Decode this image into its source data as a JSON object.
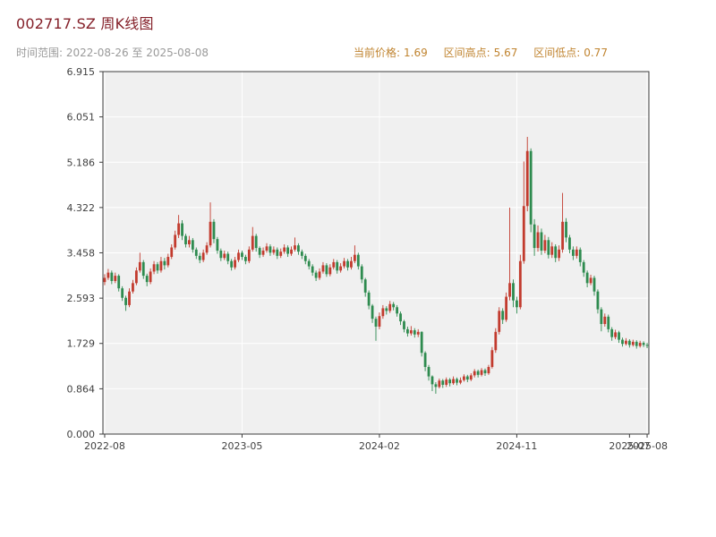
{
  "header": {
    "title": "002717.SZ 周K线图",
    "time_range": "时间范围: 2022-08-26 至 2025-08-08"
  },
  "stats": {
    "current_label": "当前价格:",
    "current_value": "1.69",
    "high_label": "区间高点:",
    "high_value": "5.67",
    "low_label": "区间低点:",
    "low_value": "0.77"
  },
  "colors": {
    "title": "#842029",
    "time_range": "#9a9a9a",
    "stats": "#c08430",
    "tick_label": "#3f3f3f",
    "plot_bg": "#f0f0f0",
    "gridline": "#ffffff",
    "frame": "#3c3c3c"
  },
  "chart_data": {
    "type": "candlestick",
    "title": "002717.SZ 周K线图",
    "symbol": "002717.SZ",
    "interval": "weekly",
    "start_date": "2022-08-26",
    "end_date": "2025-08-08",
    "current_price": 1.69,
    "range_high": 5.67,
    "range_low": 0.77,
    "ylim": [
      0,
      6.915
    ],
    "y_ticks": [
      "0.000",
      "0.864",
      "1.729",
      "2.593",
      "3.458",
      "4.322",
      "5.186",
      "6.051",
      "6.915"
    ],
    "x_ticks": [
      {
        "label": "2022-08",
        "index": 0,
        "grid": true
      },
      {
        "label": "2023-05",
        "index": 39,
        "grid": true
      },
      {
        "label": "2024-02",
        "index": 78,
        "grid": true
      },
      {
        "label": "2024-11",
        "index": 117,
        "grid": true
      },
      {
        "label": "2025-07",
        "index": 149,
        "grid": false
      },
      {
        "label": "2025-08",
        "index": 154,
        "grid": true
      }
    ],
    "up_color": "#c23b2e",
    "down_color": "#2e8b4f",
    "ohlc_format": [
      "open",
      "high",
      "low",
      "close"
    ],
    "candles": [
      [
        2.9,
        3.05,
        2.84,
        2.98
      ],
      [
        2.98,
        3.15,
        2.94,
        3.08
      ],
      [
        3.08,
        3.12,
        2.86,
        2.92
      ],
      [
        2.92,
        3.08,
        2.88,
        3.02
      ],
      [
        3.02,
        3.05,
        2.72,
        2.78
      ],
      [
        2.78,
        2.82,
        2.54,
        2.6
      ],
      [
        2.6,
        2.64,
        2.35,
        2.46
      ],
      [
        2.46,
        2.78,
        2.42,
        2.72
      ],
      [
        2.72,
        2.94,
        2.68,
        2.88
      ],
      [
        2.88,
        3.18,
        2.84,
        3.12
      ],
      [
        3.12,
        3.46,
        3.08,
        3.28
      ],
      [
        3.28,
        3.32,
        2.96,
        3.02
      ],
      [
        3.02,
        3.06,
        2.82,
        2.9
      ],
      [
        2.9,
        3.16,
        2.86,
        3.1
      ],
      [
        3.1,
        3.3,
        3.05,
        3.24
      ],
      [
        3.24,
        3.28,
        3.06,
        3.12
      ],
      [
        3.12,
        3.38,
        3.08,
        3.3
      ],
      [
        3.3,
        3.36,
        3.14,
        3.22
      ],
      [
        3.22,
        3.44,
        3.18,
        3.38
      ],
      [
        3.38,
        3.62,
        3.34,
        3.56
      ],
      [
        3.56,
        3.88,
        3.52,
        3.8
      ],
      [
        3.8,
        4.18,
        3.74,
        4.02
      ],
      [
        4.02,
        4.08,
        3.7,
        3.78
      ],
      [
        3.78,
        3.82,
        3.56,
        3.62
      ],
      [
        3.62,
        3.78,
        3.56,
        3.7
      ],
      [
        3.7,
        3.74,
        3.46,
        3.52
      ],
      [
        3.52,
        3.56,
        3.34,
        3.4
      ],
      [
        3.4,
        3.46,
        3.26,
        3.32
      ],
      [
        3.32,
        3.52,
        3.28,
        3.46
      ],
      [
        3.46,
        3.66,
        3.42,
        3.6
      ],
      [
        3.6,
        4.42,
        3.56,
        4.05
      ],
      [
        4.05,
        4.1,
        3.64,
        3.72
      ],
      [
        3.72,
        3.76,
        3.44,
        3.5
      ],
      [
        3.5,
        3.54,
        3.3,
        3.36
      ],
      [
        3.36,
        3.5,
        3.32,
        3.44
      ],
      [
        3.44,
        3.48,
        3.24,
        3.3
      ],
      [
        3.3,
        3.34,
        3.12,
        3.18
      ],
      [
        3.18,
        3.38,
        3.14,
        3.32
      ],
      [
        3.32,
        3.52,
        3.28,
        3.46
      ],
      [
        3.46,
        3.5,
        3.32,
        3.38
      ],
      [
        3.38,
        3.42,
        3.24,
        3.3
      ],
      [
        3.3,
        3.58,
        3.26,
        3.52
      ],
      [
        3.52,
        3.95,
        3.48,
        3.78
      ],
      [
        3.78,
        3.82,
        3.48,
        3.55
      ],
      [
        3.55,
        3.58,
        3.36,
        3.42
      ],
      [
        3.42,
        3.56,
        3.38,
        3.5
      ],
      [
        3.5,
        3.64,
        3.46,
        3.58
      ],
      [
        3.58,
        3.62,
        3.4,
        3.46
      ],
      [
        3.46,
        3.58,
        3.42,
        3.52
      ],
      [
        3.52,
        3.56,
        3.34,
        3.4
      ],
      [
        3.4,
        3.54,
        3.36,
        3.48
      ],
      [
        3.48,
        3.62,
        3.44,
        3.56
      ],
      [
        3.56,
        3.6,
        3.38,
        3.44
      ],
      [
        3.44,
        3.58,
        3.4,
        3.52
      ],
      [
        3.52,
        3.75,
        3.48,
        3.6
      ],
      [
        3.6,
        3.64,
        3.42,
        3.48
      ],
      [
        3.48,
        3.52,
        3.34,
        3.4
      ],
      [
        3.4,
        3.44,
        3.24,
        3.3
      ],
      [
        3.3,
        3.34,
        3.14,
        3.2
      ],
      [
        3.2,
        3.24,
        3.02,
        3.08
      ],
      [
        3.08,
        3.12,
        2.92,
        2.98
      ],
      [
        2.98,
        3.16,
        2.94,
        3.1
      ],
      [
        3.1,
        3.28,
        3.06,
        3.22
      ],
      [
        3.22,
        3.26,
        3.0,
        3.05
      ],
      [
        3.05,
        3.24,
        3.01,
        3.18
      ],
      [
        3.18,
        3.34,
        3.14,
        3.28
      ],
      [
        3.28,
        3.32,
        3.06,
        3.12
      ],
      [
        3.12,
        3.26,
        3.08,
        3.2
      ],
      [
        3.2,
        3.36,
        3.16,
        3.3
      ],
      [
        3.3,
        3.34,
        3.12,
        3.18
      ],
      [
        3.18,
        3.38,
        3.14,
        3.3
      ],
      [
        3.3,
        3.6,
        3.26,
        3.42
      ],
      [
        3.42,
        3.46,
        3.14,
        3.2
      ],
      [
        3.2,
        3.24,
        2.88,
        2.95
      ],
      [
        2.95,
        2.98,
        2.62,
        2.7
      ],
      [
        2.7,
        2.74,
        2.38,
        2.45
      ],
      [
        2.45,
        2.48,
        2.12,
        2.2
      ],
      [
        2.2,
        2.24,
        1.78,
        2.05
      ],
      [
        2.05,
        2.32,
        2.0,
        2.25
      ],
      [
        2.25,
        2.46,
        2.2,
        2.4
      ],
      [
        2.4,
        2.44,
        2.28,
        2.35
      ],
      [
        2.35,
        2.54,
        2.31,
        2.48
      ],
      [
        2.48,
        2.52,
        2.36,
        2.42
      ],
      [
        2.42,
        2.46,
        2.24,
        2.3
      ],
      [
        2.3,
        2.34,
        2.08,
        2.15
      ],
      [
        2.15,
        2.18,
        1.94,
        2.0
      ],
      [
        2.0,
        2.05,
        1.86,
        1.92
      ],
      [
        1.92,
        2.06,
        1.88,
        1.98
      ],
      [
        1.98,
        2.02,
        1.84,
        1.9
      ],
      [
        1.9,
        2.0,
        1.85,
        1.95
      ],
      [
        1.95,
        1.96,
        1.48,
        1.55
      ],
      [
        1.55,
        1.58,
        1.2,
        1.28
      ],
      [
        1.28,
        1.32,
        1.02,
        1.1
      ],
      [
        1.1,
        1.12,
        0.82,
        0.95
      ],
      [
        0.95,
        0.99,
        0.77,
        0.9
      ],
      [
        0.9,
        1.06,
        0.87,
        1.02
      ],
      [
        1.02,
        1.05,
        0.88,
        0.94
      ],
      [
        0.94,
        1.08,
        0.9,
        1.04
      ],
      [
        1.04,
        1.07,
        0.91,
        0.97
      ],
      [
        0.97,
        1.1,
        0.94,
        1.05
      ],
      [
        1.05,
        1.08,
        0.93,
        0.98
      ],
      [
        0.98,
        1.08,
        0.95,
        1.03
      ],
      [
        1.03,
        1.14,
        1.0,
        1.1
      ],
      [
        1.1,
        1.13,
        0.99,
        1.04
      ],
      [
        1.04,
        1.16,
        1.01,
        1.12
      ],
      [
        1.12,
        1.24,
        1.08,
        1.2
      ],
      [
        1.2,
        1.23,
        1.08,
        1.13
      ],
      [
        1.13,
        1.26,
        1.1,
        1.22
      ],
      [
        1.22,
        1.25,
        1.11,
        1.16
      ],
      [
        1.16,
        1.32,
        1.13,
        1.28
      ],
      [
        1.28,
        1.66,
        1.25,
        1.6
      ],
      [
        1.6,
        2.02,
        1.55,
        1.95
      ],
      [
        1.95,
        2.42,
        1.9,
        2.35
      ],
      [
        2.35,
        2.4,
        2.1,
        2.18
      ],
      [
        2.18,
        2.7,
        2.14,
        2.62
      ],
      [
        2.62,
        4.32,
        2.55,
        2.88
      ],
      [
        2.88,
        2.95,
        2.42,
        2.55
      ],
      [
        2.55,
        2.62,
        2.3,
        2.42
      ],
      [
        2.42,
        3.42,
        2.38,
        3.3
      ],
      [
        3.3,
        5.2,
        3.25,
        4.35
      ],
      [
        4.35,
        5.67,
        4.25,
        5.4
      ],
      [
        5.4,
        5.45,
        3.85,
        4.0
      ],
      [
        4.0,
        4.1,
        3.4,
        3.55
      ],
      [
        3.55,
        3.98,
        3.48,
        3.85
      ],
      [
        3.85,
        3.92,
        3.42,
        3.5
      ],
      [
        3.5,
        3.8,
        3.45,
        3.7
      ],
      [
        3.7,
        3.76,
        3.35,
        3.42
      ],
      [
        3.42,
        3.66,
        3.36,
        3.58
      ],
      [
        3.58,
        3.62,
        3.28,
        3.36
      ],
      [
        3.36,
        3.6,
        3.3,
        3.52
      ],
      [
        3.52,
        4.6,
        3.46,
        4.05
      ],
      [
        4.05,
        4.12,
        3.66,
        3.75
      ],
      [
        3.75,
        3.8,
        3.45,
        3.52
      ],
      [
        3.52,
        3.58,
        3.32,
        3.4
      ],
      [
        3.4,
        3.58,
        3.35,
        3.52
      ],
      [
        3.52,
        3.56,
        3.2,
        3.28
      ],
      [
        3.28,
        3.32,
        3.0,
        3.08
      ],
      [
        3.08,
        3.12,
        2.8,
        2.88
      ],
      [
        2.88,
        3.04,
        2.84,
        2.98
      ],
      [
        2.98,
        3.02,
        2.64,
        2.72
      ],
      [
        2.72,
        2.76,
        2.3,
        2.38
      ],
      [
        2.38,
        2.42,
        1.96,
        2.1
      ],
      [
        2.1,
        2.3,
        2.05,
        2.24
      ],
      [
        2.24,
        2.28,
        1.94,
        2.0
      ],
      [
        2.0,
        2.04,
        1.78,
        1.85
      ],
      [
        1.85,
        1.99,
        1.81,
        1.94
      ],
      [
        1.94,
        1.97,
        1.74,
        1.8
      ],
      [
        1.8,
        1.84,
        1.67,
        1.72
      ],
      [
        1.72,
        1.83,
        1.69,
        1.78
      ],
      [
        1.78,
        1.81,
        1.65,
        1.7
      ],
      [
        1.7,
        1.8,
        1.67,
        1.76
      ],
      [
        1.76,
        1.79,
        1.63,
        1.68
      ],
      [
        1.68,
        1.78,
        1.65,
        1.74
      ],
      [
        1.74,
        1.77,
        1.66,
        1.7
      ],
      [
        1.7,
        1.74,
        1.64,
        1.69
      ]
    ]
  }
}
